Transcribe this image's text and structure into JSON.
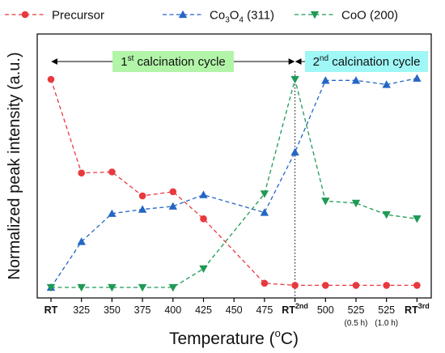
{
  "chart_data": {
    "type": "line",
    "xlabel": "Temperature (",
    "xlabel_sup": "o",
    "xlabel_end": "C)",
    "ylabel": "Normalized peak intensity (a.u.)",
    "x_ticks": [
      {
        "main": "RT",
        "bold": true
      },
      {
        "main": "325"
      },
      {
        "main": "350"
      },
      {
        "main": "375"
      },
      {
        "main": "400"
      },
      {
        "main": "425"
      },
      {
        "main": "450"
      },
      {
        "main": "475"
      },
      {
        "main": "RT",
        "sup": "2nd",
        "bold": true
      },
      {
        "main": "500"
      },
      {
        "main": "525",
        "sub": "(0.5 h)"
      },
      {
        "main": "525",
        "sub": "(1.0 h)"
      },
      {
        "main": "RT",
        "sup": "3rd",
        "bold": true
      }
    ],
    "ylim": [
      0,
      1.1
    ],
    "series": [
      {
        "name": "Precursor",
        "color": "#e8393e",
        "marker": "circle",
        "points": [
          [
            0,
            1.0
          ],
          [
            1,
            0.55
          ],
          [
            2,
            0.555
          ],
          [
            3,
            0.44
          ],
          [
            4,
            0.46
          ],
          [
            5,
            0.33
          ],
          [
            7,
            0.02
          ],
          [
            8,
            0.01
          ],
          [
            9,
            0.01
          ],
          [
            10,
            0.01
          ],
          [
            11,
            0.01
          ],
          [
            12,
            0.01
          ]
        ]
      },
      {
        "name": "Co3O4 (311)",
        "name_parts": [
          "Co",
          "3",
          "O",
          "4",
          " (311)"
        ],
        "color": "#2466c4",
        "marker": "triangle-up",
        "points": [
          [
            0,
            0.0
          ],
          [
            1,
            0.22
          ],
          [
            2,
            0.355
          ],
          [
            3,
            0.375
          ],
          [
            4,
            0.39
          ],
          [
            5,
            0.445
          ],
          [
            7,
            0.36
          ],
          [
            8,
            0.65
          ],
          [
            9,
            0.995
          ],
          [
            10,
            0.995
          ],
          [
            11,
            0.975
          ],
          [
            12,
            1.005
          ]
        ]
      },
      {
        "name": "CoO (200)",
        "color": "#1e9a55",
        "marker": "triangle-down",
        "points": [
          [
            0,
            0.0
          ],
          [
            1,
            0.0
          ],
          [
            2,
            0.0
          ],
          [
            3,
            0.0
          ],
          [
            4,
            0.0
          ],
          [
            5,
            0.09
          ],
          [
            7,
            0.45
          ],
          [
            8,
            1.0
          ],
          [
            9,
            0.415
          ],
          [
            10,
            0.405
          ],
          [
            11,
            0.35
          ],
          [
            12,
            0.33
          ]
        ]
      }
    ],
    "annotations": [
      {
        "label": "1",
        "sup": "st",
        "rest": " calcination cycle",
        "background": "#b2f5a8",
        "from": 0,
        "to": 8
      },
      {
        "label": "2",
        "sup": "nd",
        "rest": " calcination cycle",
        "background": "#9ff7f6",
        "from": 8,
        "to": 12
      }
    ],
    "divider_at": 8,
    "grid": false,
    "legend": "top"
  }
}
